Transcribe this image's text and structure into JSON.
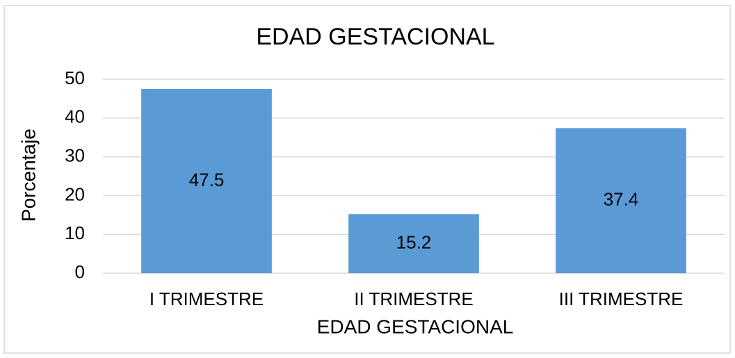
{
  "chart_data": {
    "type": "bar",
    "title": "EDAD GESTACIONAL",
    "x_label": "EDAD GESTACIONAL",
    "y_label": "Porcentaje",
    "categories": [
      "I TRIMESTRE",
      "II TRIMESTRE",
      "III TRIMESTRE"
    ],
    "values": [
      47.5,
      15.2,
      37.4
    ],
    "color": "#5b9bd5",
    "ylim": [
      0,
      50
    ],
    "yticks": [
      0,
      10,
      20,
      30,
      40,
      50
    ],
    "grid": true
  }
}
